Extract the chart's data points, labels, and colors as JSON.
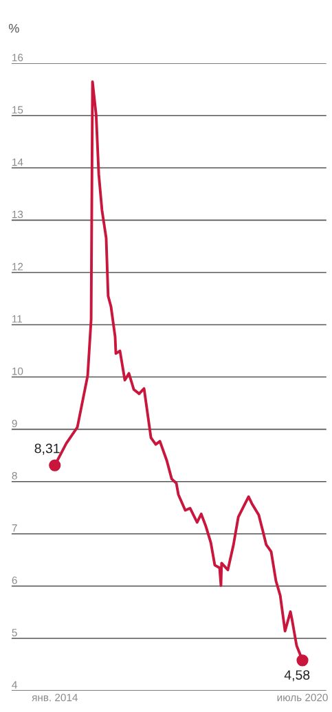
{
  "chart_data": {
    "type": "line",
    "ylabel": "%",
    "xlim": [
      "2012-11-13",
      "2021-02-15"
    ],
    "ylim": [
      4,
      16
    ],
    "yticks": [
      4,
      5,
      6,
      7,
      8,
      9,
      10,
      11,
      12,
      13,
      14,
      15,
      16
    ],
    "xticks": [
      {
        "value": "2014-01-01",
        "label": "янв. 2014"
      },
      {
        "value": "2020-07-01",
        "label": "июль 2020"
      }
    ],
    "grid": "y",
    "legend": false,
    "line_style": "solid",
    "series": [
      {
        "marker": "none",
        "color": "#c8163c",
        "x": [
          "2014-01-01",
          "2014-04-21",
          "2014-08-05",
          "2014-11-12",
          "2014-12-15",
          "2014-12-28",
          "2015-02-01",
          "2015-02-26",
          "2015-03-29",
          "2015-05-08",
          "2015-05-27",
          "2015-06-23",
          "2015-08-02",
          "2015-08-09",
          "2015-09-17",
          "2015-11-03",
          "2015-12-12",
          "2016-01-28",
          "2016-03-19",
          "2016-05-05",
          "2016-07-10",
          "2016-08-25",
          "2016-10-04",
          "2016-12-09",
          "2017-01-25",
          "2017-03-10",
          "2017-03-30",
          "2017-06-04",
          "2017-07-20",
          "2017-09-25",
          "2017-11-04",
          "2017-12-19",
          "2018-02-04",
          "2018-03-14",
          "2018-04-29",
          "2018-05-12",
          "2018-05-18",
          "2018-07-17",
          "2018-09-09",
          "2018-10-25",
          "2018-12-17",
          "2019-02-01",
          "2019-03-04",
          "2019-05-09",
          "2019-06-18",
          "2019-07-20",
          "2019-09-05",
          "2019-10-21",
          "2019-12-01",
          "2020-01-16",
          "2020-03-08",
          "2020-03-21",
          "2020-05-06",
          "2020-07-01"
        ],
        "values": [
          8.31,
          8.73,
          9.04,
          10.03,
          11.1,
          15.65,
          15.01,
          13.88,
          13.19,
          12.66,
          11.55,
          11.35,
          10.77,
          10.45,
          10.5,
          9.94,
          10.07,
          9.76,
          9.68,
          9.78,
          8.84,
          8.71,
          8.77,
          8.4,
          8.05,
          7.97,
          7.75,
          7.45,
          7.49,
          7.22,
          7.38,
          7.14,
          6.83,
          6.4,
          6.35,
          6.01,
          6.44,
          6.31,
          6.79,
          7.32,
          7.53,
          7.71,
          7.58,
          7.36,
          7.05,
          6.79,
          6.66,
          6.1,
          5.82,
          5.14,
          5.51,
          5.38,
          4.86,
          4.58
        ]
      },
      {
        "type": "scatter",
        "marker": "circle",
        "color": "#c8163c",
        "x": [
          "2014-01-01",
          "2020-07-01"
        ],
        "values": [
          8.31,
          4.58
        ]
      }
    ],
    "annotations": [
      {
        "text": "8,31",
        "x": "2014-01-01",
        "y": 8.31
      },
      {
        "text": "4,58",
        "x": "2020-07-01",
        "y": 4.58
      }
    ]
  }
}
